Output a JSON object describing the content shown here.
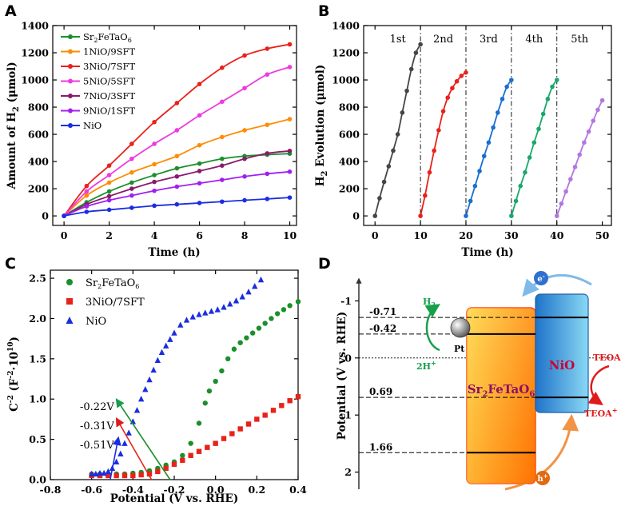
{
  "chart_data": [
    {
      "panel": "A",
      "type": "line",
      "xlabel": "Time (h)",
      "ylabel": "Amount of H2 (μmol)",
      "ylabel_main": "Amount of H",
      "ylabel_sub": "2",
      "ylabel_tail": " (μmol)",
      "xlim": [
        -0.5,
        10.3
      ],
      "ylim": [
        -70,
        1400
      ],
      "xticks": [
        0,
        2,
        4,
        6,
        8,
        10
      ],
      "yticks": [
        0,
        200,
        400,
        600,
        800,
        1000,
        1200,
        1400
      ],
      "legend_position": "top-left",
      "x": [
        0,
        1,
        2,
        3,
        4,
        5,
        6,
        7,
        8,
        9,
        10
      ],
      "series": [
        {
          "name": "Sr2FeTaO6",
          "label_main": "Sr",
          "label_parts": [
            "2",
            "FeTaO",
            "6"
          ],
          "color": "#1a8f2a",
          "values": [
            0,
            100,
            180,
            245,
            300,
            350,
            385,
            420,
            440,
            450,
            458
          ]
        },
        {
          "name": "1NiO/9SFT",
          "color": "#ff8c00",
          "values": [
            0,
            150,
            245,
            320,
            380,
            440,
            520,
            580,
            630,
            670,
            712
          ]
        },
        {
          "name": "3NiO/7SFT",
          "color": "#e8221a",
          "values": [
            0,
            220,
            370,
            530,
            690,
            830,
            970,
            1090,
            1180,
            1230,
            1262
          ]
        },
        {
          "name": "5NiO/5SFT",
          "color": "#ee3ae0",
          "values": [
            0,
            180,
            300,
            420,
            530,
            630,
            740,
            840,
            940,
            1040,
            1095
          ]
        },
        {
          "name": "7NiO/3SFT",
          "color": "#8b1a6b",
          "values": [
            0,
            85,
            145,
            200,
            250,
            290,
            330,
            370,
            420,
            460,
            478
          ]
        },
        {
          "name": "9NiO/1SFT",
          "color": "#a020f0",
          "values": [
            0,
            70,
            115,
            150,
            185,
            215,
            240,
            265,
            290,
            310,
            325
          ]
        },
        {
          "name": "NiO",
          "color": "#1a2ee0",
          "values": [
            0,
            30,
            45,
            60,
            75,
            85,
            95,
            105,
            115,
            125,
            135
          ]
        }
      ]
    },
    {
      "panel": "B",
      "type": "line",
      "xlabel": "Time (h)",
      "ylabel": "H2 Evolution (μmol)",
      "ylabel_main": "H",
      "ylabel_sub": "2",
      "ylabel_tail": " Evolution (μmol)",
      "xlim": [
        -2.5,
        52
      ],
      "ylim": [
        -70,
        1400
      ],
      "xticks": [
        0,
        10,
        20,
        30,
        40,
        50
      ],
      "yticks": [
        0,
        200,
        400,
        600,
        800,
        1000,
        1200,
        1400
      ],
      "cycle_labels": [
        "1st",
        "2nd",
        "3rd",
        "4th",
        "5th"
      ],
      "cycle_boundaries": [
        10,
        20,
        30,
        40
      ],
      "series": [
        {
          "name": "1st",
          "color": "#454545",
          "x": [
            0,
            1,
            2,
            3,
            4,
            5,
            6,
            7,
            8,
            9,
            10
          ],
          "values": [
            0,
            130,
            250,
            365,
            480,
            600,
            760,
            920,
            1080,
            1200,
            1262
          ]
        },
        {
          "name": "2nd",
          "color": "#e8221a",
          "x": [
            10,
            11,
            12,
            13,
            14,
            15,
            16,
            17,
            18,
            19,
            20
          ],
          "values": [
            0,
            150,
            320,
            480,
            630,
            770,
            870,
            940,
            990,
            1030,
            1055
          ]
        },
        {
          "name": "3rd",
          "color": "#1a6fd0",
          "x": [
            20,
            21,
            22,
            23,
            24,
            25,
            26,
            27,
            28,
            29,
            30
          ],
          "values": [
            0,
            110,
            220,
            330,
            440,
            540,
            650,
            760,
            860,
            950,
            1000
          ]
        },
        {
          "name": "4th",
          "color": "#1aa86a",
          "x": [
            30,
            31,
            32,
            33,
            34,
            35,
            36,
            37,
            38,
            39,
            40
          ],
          "values": [
            0,
            110,
            220,
            320,
            430,
            540,
            640,
            750,
            860,
            950,
            1000
          ]
        },
        {
          "name": "5th",
          "color": "#b277e0",
          "x": [
            40,
            41,
            42,
            43,
            44,
            45,
            46,
            47,
            48,
            49,
            50
          ],
          "values": [
            0,
            90,
            180,
            270,
            360,
            450,
            540,
            620,
            700,
            780,
            850
          ]
        }
      ]
    },
    {
      "panel": "C",
      "type": "scatter",
      "xlabel": "Potential (V vs. RHE)",
      "ylabel": "C-2 (F-2·1010)",
      "ylabel_main": "C",
      "ylabel_sup1": "-2",
      "ylabel_mid": " (F",
      "ylabel_sup2": "-2",
      "ylabel_dot": "·10",
      "ylabel_sup3": "10",
      "ylabel_tail": ")",
      "xlim": [
        -0.8,
        0.4
      ],
      "ylim": [
        0,
        2.6
      ],
      "xticks": [
        -0.8,
        -0.6,
        -0.4,
        -0.2,
        0.0,
        0.2,
        0.4
      ],
      "xtick_labels": [
        "-0.8",
        "-0.6",
        "-0.4",
        "-0.2",
        "0.0",
        "0.2",
        "0.4"
      ],
      "yticks": [
        0.0,
        0.5,
        1.0,
        1.5,
        2.0,
        2.5
      ],
      "ytick_labels": [
        "0.0",
        "0.5",
        "1.0",
        "1.5",
        "2.0",
        "2.5"
      ],
      "legend_position": "top-left",
      "series": [
        {
          "name": "Sr2FeTaO6",
          "label_main": "Sr",
          "label_parts": [
            "2",
            "FeTaO",
            "6"
          ],
          "color": "#1a8f2a",
          "marker": "circle",
          "x": [
            -0.6,
            -0.56,
            -0.52,
            -0.48,
            -0.44,
            -0.4,
            -0.36,
            -0.32,
            -0.28,
            -0.24,
            -0.2,
            -0.16,
            -0.12,
            -0.08,
            -0.05,
            -0.03,
            0.0,
            0.03,
            0.06,
            0.09,
            0.12,
            0.15,
            0.18,
            0.21,
            0.24,
            0.27,
            0.3,
            0.33,
            0.36,
            0.4
          ],
          "y": [
            0.07,
            0.07,
            0.07,
            0.07,
            0.07,
            0.08,
            0.09,
            0.11,
            0.14,
            0.18,
            0.22,
            0.3,
            0.45,
            0.7,
            0.95,
            1.1,
            1.22,
            1.35,
            1.5,
            1.62,
            1.7,
            1.76,
            1.82,
            1.88,
            1.94,
            2.0,
            2.06,
            2.11,
            2.16,
            2.21
          ]
        },
        {
          "name": "3NiO/7SFT",
          "color": "#e8221a",
          "marker": "square",
          "x": [
            -0.6,
            -0.56,
            -0.52,
            -0.48,
            -0.44,
            -0.4,
            -0.36,
            -0.32,
            -0.28,
            -0.24,
            -0.2,
            -0.16,
            -0.12,
            -0.08,
            -0.04,
            0.0,
            0.04,
            0.08,
            0.12,
            0.16,
            0.2,
            0.24,
            0.28,
            0.32,
            0.36,
            0.4
          ],
          "y": [
            0.05,
            0.05,
            0.05,
            0.05,
            0.05,
            0.05,
            0.06,
            0.07,
            0.1,
            0.14,
            0.19,
            0.24,
            0.3,
            0.35,
            0.4,
            0.45,
            0.51,
            0.57,
            0.63,
            0.69,
            0.75,
            0.8,
            0.86,
            0.92,
            0.98,
            1.03
          ]
        },
        {
          "name": "NiO",
          "color": "#1a2ee0",
          "marker": "triangle",
          "x": [
            -0.6,
            -0.58,
            -0.56,
            -0.54,
            -0.52,
            -0.5,
            -0.48,
            -0.46,
            -0.44,
            -0.42,
            -0.4,
            -0.38,
            -0.36,
            -0.34,
            -0.32,
            -0.3,
            -0.28,
            -0.26,
            -0.24,
            -0.22,
            -0.2,
            -0.17,
            -0.14,
            -0.11,
            -0.08,
            -0.05,
            -0.02,
            0.01,
            0.04,
            0.07,
            0.1,
            0.13,
            0.16,
            0.19,
            0.22
          ],
          "y": [
            0.07,
            0.07,
            0.08,
            0.08,
            0.1,
            0.14,
            0.22,
            0.32,
            0.45,
            0.58,
            0.72,
            0.86,
            1.0,
            1.12,
            1.24,
            1.36,
            1.48,
            1.58,
            1.66,
            1.74,
            1.82,
            1.92,
            1.98,
            2.02,
            2.05,
            2.07,
            2.09,
            2.11,
            2.14,
            2.18,
            2.22,
            2.27,
            2.33,
            2.4,
            2.48
          ]
        }
      ],
      "annotations": [
        {
          "text": "-0.22V",
          "color": "#1a8f2a",
          "x_target": -0.22
        },
        {
          "text": "-0.31V",
          "color": "#e8221a",
          "x_target": -0.31
        },
        {
          "text": "-0.51V",
          "color": "#1a2ee0",
          "x_target": -0.51
        }
      ]
    }
  ],
  "panel_d": {
    "panel": "D",
    "ylabel": "Potential (V vs. RHE)",
    "ylim": [
      -1.3,
      2.3
    ],
    "yticks": [
      -1,
      0,
      1,
      2
    ],
    "ytick_labels": [
      "-1",
      "0",
      "1",
      "2"
    ],
    "levels": [
      {
        "label": "-0.71",
        "value": -0.71
      },
      {
        "label": "-0.42",
        "value": -0.42
      },
      {
        "label": "0.69",
        "value": 0.69
      },
      {
        "label": "1.66",
        "value": 1.66
      }
    ],
    "sft_main": "Sr",
    "sft_parts": [
      "2",
      "FeTaO",
      "6"
    ],
    "nio_label": "NiO",
    "pt_label": "Pt",
    "h2_main": "H",
    "h2_sub": "2",
    "twoh_main": "2H",
    "twoh_sup": "+",
    "electron_main": "e",
    "electron_sup": "-",
    "hole_main": "h",
    "hole_sup": "+",
    "teoa_label": "TEOA",
    "teoa_ox_main": "TEOA",
    "teoa_ox_sup": "+",
    "colors": {
      "sft_top": "#ffd84d",
      "sft_bottom": "#ff8a00",
      "sft_edge": "#ff4b1a",
      "nio_left": "#1e73c8",
      "nio_right": "#7ad0f2",
      "nio_text": "#cc0033",
      "electron": "#4a9ee0",
      "hole": "#f07a1a",
      "green": "#16a04a",
      "red": "#e01a1a"
    }
  },
  "panel_letters": [
    "A",
    "B",
    "C",
    "D"
  ]
}
